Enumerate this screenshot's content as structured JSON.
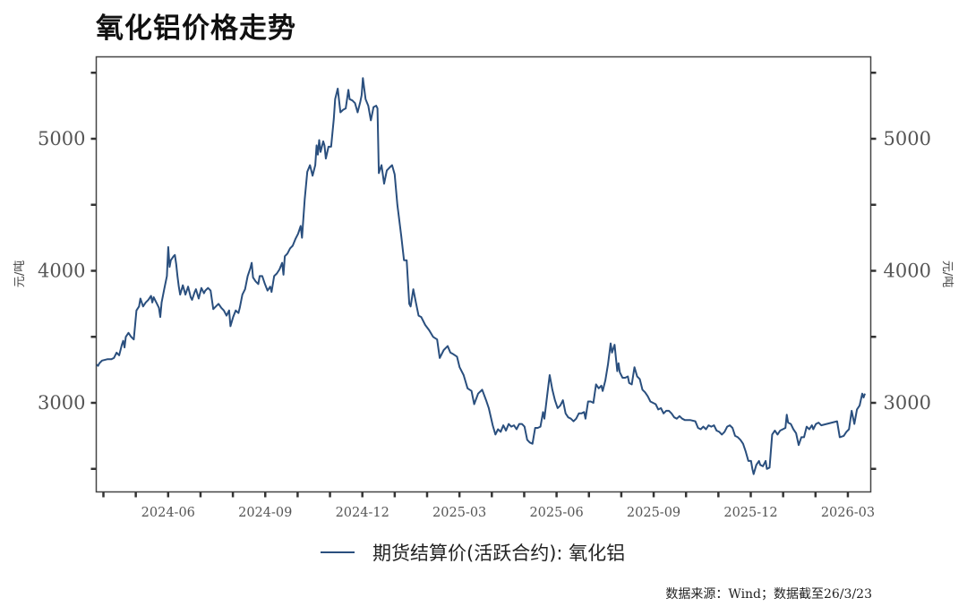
{
  "header": {
    "title": "氧化铝价格走势"
  },
  "legend": {
    "label": "期货结算价(活跃合约): 氧化铝",
    "color": "#2a4f7e"
  },
  "footer": {
    "source": "数据来源：Wind；数据截至26/3/23"
  },
  "axes": {
    "y_unit_left": "元/吨",
    "y_unit_right": "元/吨",
    "y_ticks": [
      3000,
      4000,
      5000
    ],
    "y_minor_ticks": [
      2500,
      3500,
      4500,
      5500
    ],
    "x_ticks": [
      "2024-06",
      "2024-09",
      "2024-12",
      "2025-03",
      "2025-06",
      "2025-09",
      "2025-12",
      "2026-03"
    ]
  },
  "chart_data": {
    "type": "line",
    "title": "氧化铝价格走势",
    "xlabel": "",
    "ylabel": "元/吨",
    "ylim": [
      2330,
      5625
    ],
    "xlim": [
      "2024-03-15",
      "2026-03-23"
    ],
    "grid": false,
    "legend_position": "bottom",
    "x_tick_labels": [
      "2024-06",
      "2024-09",
      "2024-12",
      "2025-03",
      "2025-06",
      "2025-09",
      "2025-12",
      "2026-03"
    ],
    "y_tick_labels": [
      "3000",
      "4000",
      "5000"
    ],
    "series": [
      {
        "name": "期货结算价(活跃合约): 氧化铝",
        "color": "#2a4f7e",
        "unit": "元/吨",
        "x_px_month_offset": "months since 2024-03-15 (approx, read from axis)",
        "points": [
          [
            0.0,
            3290
          ],
          [
            0.05,
            3280
          ],
          [
            0.1,
            3300
          ],
          [
            0.2,
            3320
          ],
          [
            0.4,
            3330
          ],
          [
            0.55,
            3330
          ],
          [
            0.65,
            3340
          ],
          [
            0.75,
            3380
          ],
          [
            0.85,
            3360
          ],
          [
            0.95,
            3440
          ],
          [
            1.0,
            3470
          ],
          [
            1.05,
            3420
          ],
          [
            1.1,
            3500
          ],
          [
            1.2,
            3530
          ],
          [
            1.3,
            3500
          ],
          [
            1.4,
            3480
          ],
          [
            1.5,
            3700
          ],
          [
            1.6,
            3730
          ],
          [
            1.65,
            3790
          ],
          [
            1.75,
            3730
          ],
          [
            1.85,
            3760
          ],
          [
            1.95,
            3780
          ],
          [
            2.05,
            3810
          ],
          [
            2.1,
            3760
          ],
          [
            2.15,
            3800
          ],
          [
            2.25,
            3760
          ],
          [
            2.35,
            3720
          ],
          [
            2.4,
            3650
          ],
          [
            2.45,
            3760
          ],
          [
            2.55,
            3860
          ],
          [
            2.65,
            3960
          ],
          [
            2.7,
            4180
          ],
          [
            2.75,
            4030
          ],
          [
            2.8,
            4080
          ],
          [
            2.9,
            4110
          ],
          [
            2.95,
            4120
          ],
          [
            3.0,
            4050
          ],
          [
            3.05,
            3960
          ],
          [
            3.1,
            3880
          ],
          [
            3.15,
            3820
          ],
          [
            3.25,
            3890
          ],
          [
            3.35,
            3820
          ],
          [
            3.45,
            3880
          ],
          [
            3.55,
            3800
          ],
          [
            3.6,
            3780
          ],
          [
            3.7,
            3840
          ],
          [
            3.75,
            3860
          ],
          [
            3.85,
            3790
          ],
          [
            3.95,
            3870
          ],
          [
            4.05,
            3830
          ],
          [
            4.1,
            3850
          ],
          [
            4.2,
            3870
          ],
          [
            4.3,
            3850
          ],
          [
            4.4,
            3710
          ],
          [
            4.5,
            3730
          ],
          [
            4.6,
            3750
          ],
          [
            4.7,
            3720
          ],
          [
            4.8,
            3700
          ],
          [
            4.9,
            3660
          ],
          [
            5.0,
            3700
          ],
          [
            5.05,
            3580
          ],
          [
            5.15,
            3650
          ],
          [
            5.25,
            3700
          ],
          [
            5.35,
            3680
          ],
          [
            5.4,
            3720
          ],
          [
            5.5,
            3820
          ],
          [
            5.6,
            3860
          ],
          [
            5.7,
            3960
          ],
          [
            5.8,
            4020
          ],
          [
            5.85,
            4060
          ],
          [
            5.9,
            3950
          ],
          [
            6.0,
            3920
          ],
          [
            6.1,
            3900
          ],
          [
            6.15,
            3960
          ],
          [
            6.25,
            3960
          ],
          [
            6.35,
            3900
          ],
          [
            6.45,
            3850
          ],
          [
            6.55,
            3880
          ],
          [
            6.6,
            3840
          ],
          [
            6.7,
            3960
          ],
          [
            6.8,
            3980
          ],
          [
            6.9,
            4010
          ],
          [
            7.0,
            4060
          ],
          [
            7.05,
            3970
          ],
          [
            7.1,
            4110
          ],
          [
            7.2,
            4130
          ],
          [
            7.3,
            4170
          ],
          [
            7.4,
            4190
          ],
          [
            7.5,
            4240
          ],
          [
            7.6,
            4280
          ],
          [
            7.7,
            4340
          ],
          [
            7.75,
            4250
          ],
          [
            7.85,
            4540
          ],
          [
            7.95,
            4750
          ],
          [
            8.05,
            4800
          ],
          [
            8.15,
            4720
          ],
          [
            8.25,
            4800
          ],
          [
            8.3,
            4950
          ],
          [
            8.35,
            4880
          ],
          [
            8.4,
            4990
          ],
          [
            8.45,
            4900
          ],
          [
            8.55,
            4980
          ],
          [
            8.6,
            4950
          ],
          [
            8.65,
            4850
          ],
          [
            8.75,
            4940
          ],
          [
            8.85,
            4940
          ],
          [
            8.95,
            5150
          ],
          [
            9.0,
            5300
          ],
          [
            9.1,
            5380
          ],
          [
            9.2,
            5200
          ],
          [
            9.3,
            5220
          ],
          [
            9.4,
            5230
          ],
          [
            9.5,
            5370
          ],
          [
            9.55,
            5300
          ],
          [
            9.65,
            5290
          ],
          [
            9.75,
            5270
          ],
          [
            9.85,
            5200
          ],
          [
            9.95,
            5280
          ],
          [
            10.0,
            5330
          ],
          [
            10.05,
            5460
          ],
          [
            10.15,
            5300
          ],
          [
            10.25,
            5250
          ],
          [
            10.35,
            5140
          ],
          [
            10.45,
            5240
          ],
          [
            10.55,
            5250
          ],
          [
            10.6,
            5230
          ],
          [
            10.65,
            4740
          ],
          [
            10.75,
            4800
          ],
          [
            10.85,
            4660
          ],
          [
            10.95,
            4760
          ],
          [
            11.05,
            4780
          ],
          [
            11.15,
            4800
          ],
          [
            11.25,
            4730
          ],
          [
            11.35,
            4500
          ],
          [
            11.5,
            4260
          ],
          [
            11.6,
            4080
          ],
          [
            11.7,
            4080
          ],
          [
            11.8,
            3750
          ],
          [
            11.85,
            3730
          ],
          [
            11.95,
            3860
          ],
          [
            12.05,
            3760
          ],
          [
            12.15,
            3660
          ],
          [
            12.25,
            3650
          ],
          [
            12.4,
            3590
          ],
          [
            12.55,
            3550
          ],
          [
            12.7,
            3500
          ],
          [
            12.85,
            3480
          ],
          [
            12.95,
            3340
          ],
          [
            13.1,
            3400
          ],
          [
            13.25,
            3430
          ],
          [
            13.35,
            3380
          ],
          [
            13.45,
            3370
          ],
          [
            13.6,
            3350
          ],
          [
            13.7,
            3270
          ],
          [
            13.85,
            3210
          ],
          [
            14.0,
            3110
          ],
          [
            14.15,
            3090
          ],
          [
            14.25,
            2990
          ],
          [
            14.4,
            3070
          ],
          [
            14.55,
            3100
          ],
          [
            14.7,
            3020
          ],
          [
            14.8,
            2960
          ],
          [
            14.95,
            2830
          ],
          [
            15.05,
            2760
          ],
          [
            15.15,
            2800
          ],
          [
            15.25,
            2780
          ],
          [
            15.35,
            2830
          ],
          [
            15.45,
            2790
          ],
          [
            15.55,
            2840
          ],
          [
            15.65,
            2820
          ],
          [
            15.75,
            2830
          ],
          [
            15.85,
            2800
          ],
          [
            15.95,
            2840
          ],
          [
            16.05,
            2840
          ],
          [
            16.15,
            2820
          ],
          [
            16.25,
            2720
          ],
          [
            16.35,
            2700
          ],
          [
            16.45,
            2690
          ],
          [
            16.55,
            2810
          ],
          [
            16.65,
            2810
          ],
          [
            16.75,
            2820
          ],
          [
            16.85,
            2930
          ],
          [
            16.9,
            2880
          ],
          [
            17.0,
            3050
          ],
          [
            17.1,
            3210
          ],
          [
            17.2,
            3100
          ],
          [
            17.3,
            3020
          ],
          [
            17.4,
            2960
          ],
          [
            17.5,
            2980
          ],
          [
            17.6,
            3020
          ],
          [
            17.7,
            2920
          ],
          [
            17.8,
            2890
          ],
          [
            17.9,
            2880
          ],
          [
            18.0,
            2860
          ],
          [
            18.1,
            2880
          ],
          [
            18.2,
            2920
          ],
          [
            18.3,
            2920
          ],
          [
            18.4,
            2930
          ],
          [
            18.45,
            2880
          ],
          [
            18.55,
            3010
          ],
          [
            18.65,
            3010
          ],
          [
            18.75,
            3000
          ],
          [
            18.85,
            3140
          ],
          [
            18.95,
            3110
          ],
          [
            19.05,
            3130
          ],
          [
            19.1,
            3090
          ],
          [
            19.2,
            3170
          ],
          [
            19.3,
            3290
          ],
          [
            19.4,
            3450
          ],
          [
            19.45,
            3380
          ],
          [
            19.55,
            3440
          ],
          [
            19.65,
            3240
          ],
          [
            19.7,
            3300
          ],
          [
            19.75,
            3230
          ],
          [
            19.85,
            3190
          ],
          [
            19.95,
            3190
          ],
          [
            20.05,
            3200
          ],
          [
            20.1,
            3150
          ],
          [
            20.2,
            3140
          ],
          [
            20.3,
            3270
          ],
          [
            20.4,
            3200
          ],
          [
            20.5,
            3180
          ],
          [
            20.6,
            3100
          ],
          [
            20.7,
            3080
          ],
          [
            20.8,
            3050
          ],
          [
            20.9,
            3010
          ],
          [
            21.0,
            3000
          ],
          [
            21.1,
            2990
          ],
          [
            21.2,
            2950
          ],
          [
            21.3,
            2960
          ],
          [
            21.4,
            2920
          ],
          [
            21.5,
            2940
          ],
          [
            21.6,
            2940
          ],
          [
            21.7,
            2920
          ],
          [
            21.8,
            2890
          ],
          [
            21.9,
            2880
          ],
          [
            22.0,
            2900
          ],
          [
            22.1,
            2880
          ],
          [
            22.2,
            2870
          ],
          [
            22.4,
            2870
          ],
          [
            22.6,
            2860
          ],
          [
            22.7,
            2810
          ],
          [
            22.8,
            2800
          ],
          [
            22.9,
            2820
          ],
          [
            23.0,
            2800
          ],
          [
            23.1,
            2830
          ],
          [
            23.2,
            2820
          ],
          [
            23.3,
            2830
          ],
          [
            23.4,
            2790
          ],
          [
            23.5,
            2780
          ],
          [
            23.6,
            2760
          ],
          [
            23.7,
            2780
          ],
          [
            23.8,
            2820
          ],
          [
            23.9,
            2830
          ],
          [
            24.0,
            2810
          ],
          [
            24.1,
            2750
          ],
          [
            24.2,
            2740
          ],
          [
            24.3,
            2720
          ],
          [
            24.4,
            2690
          ],
          [
            24.5,
            2630
          ],
          [
            24.6,
            2560
          ],
          [
            24.7,
            2560
          ],
          [
            24.75,
            2500
          ],
          [
            24.8,
            2460
          ],
          [
            24.9,
            2530
          ],
          [
            25.0,
            2560
          ],
          [
            25.05,
            2530
          ],
          [
            25.15,
            2520
          ],
          [
            25.25,
            2560
          ],
          [
            25.3,
            2500
          ],
          [
            25.4,
            2510
          ],
          [
            25.5,
            2760
          ],
          [
            25.6,
            2790
          ],
          [
            25.7,
            2760
          ],
          [
            25.8,
            2790
          ],
          [
            25.9,
            2800
          ],
          [
            26.0,
            2810
          ],
          [
            26.05,
            2910
          ],
          [
            26.1,
            2850
          ],
          [
            26.2,
            2840
          ],
          [
            26.3,
            2800
          ],
          [
            26.4,
            2770
          ],
          [
            26.5,
            2680
          ],
          [
            26.6,
            2740
          ],
          [
            26.7,
            2740
          ],
          [
            26.8,
            2820
          ],
          [
            26.9,
            2800
          ],
          [
            27.0,
            2830
          ],
          [
            27.05,
            2800
          ],
          [
            27.15,
            2840
          ],
          [
            27.25,
            2850
          ],
          [
            27.35,
            2830
          ],
          [
            27.55,
            2840
          ],
          [
            27.75,
            2850
          ],
          [
            27.95,
            2860
          ],
          [
            28.05,
            2740
          ],
          [
            28.2,
            2750
          ],
          [
            28.3,
            2780
          ],
          [
            28.4,
            2800
          ],
          [
            28.5,
            2940
          ],
          [
            28.6,
            2840
          ],
          [
            28.7,
            2950
          ],
          [
            28.8,
            2980
          ],
          [
            28.9,
            3070
          ],
          [
            28.95,
            3040
          ],
          [
            29.0,
            3070
          ]
        ]
      }
    ]
  }
}
